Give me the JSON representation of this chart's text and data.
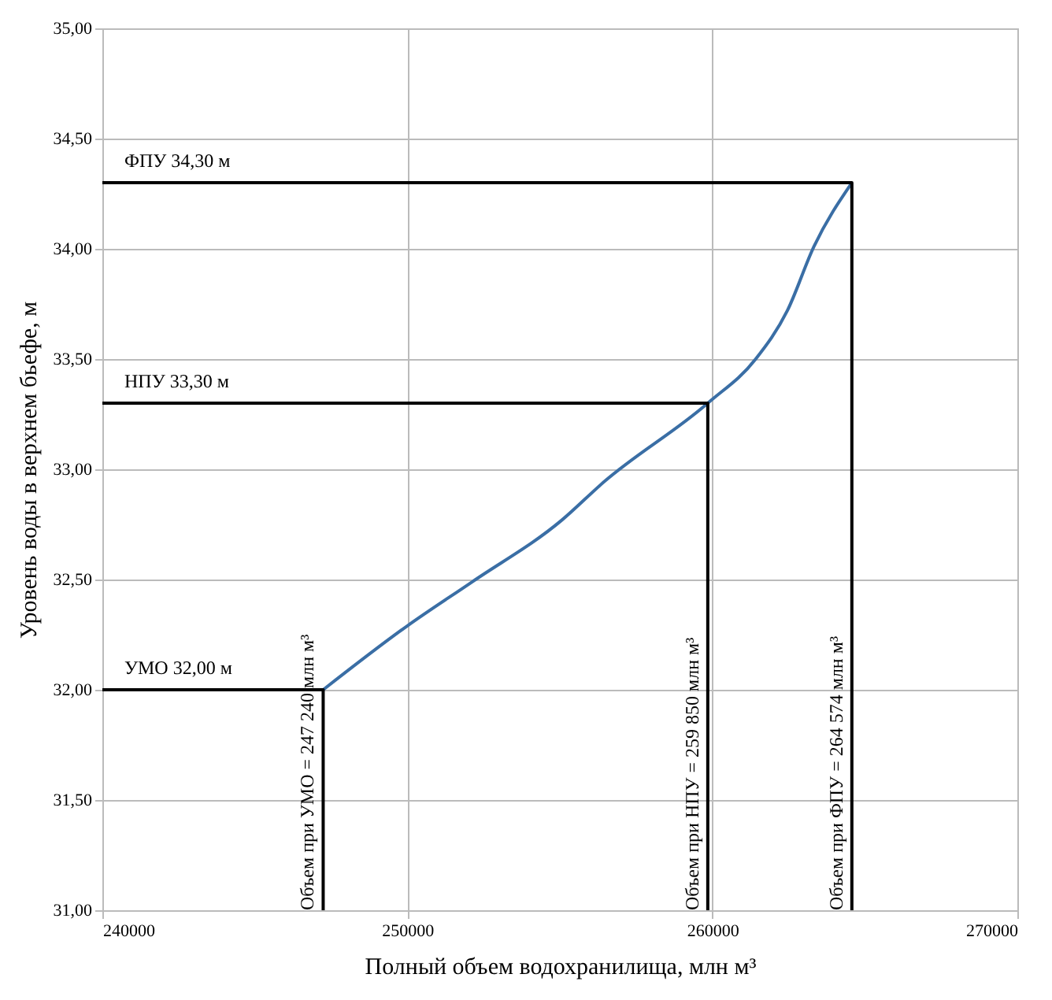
{
  "chart_data": {
    "type": "line",
    "xlabel": "Полный объем водохранилища, млн м³",
    "ylabel": "Уровень воды в верхнем бьефе,  м",
    "xlim": [
      240000,
      270000
    ],
    "xticks": [
      240000,
      250000,
      260000,
      270000
    ],
    "ylim": [
      31,
      35
    ],
    "yticks": [
      {
        "value": 31,
        "label": "31,00"
      },
      {
        "value": 31.5,
        "label": "31,50"
      },
      {
        "value": 32,
        "label": "32,00"
      },
      {
        "value": 32.5,
        "label": "32,50"
      },
      {
        "value": 33,
        "label": "33,00"
      },
      {
        "value": 33.5,
        "label": "33,50"
      },
      {
        "value": 34,
        "label": "34,00"
      },
      {
        "value": 34.5,
        "label": "34,50"
      },
      {
        "value": 35,
        "label": "35,00"
      }
    ],
    "grid": true,
    "marker": "none",
    "line_style": "solid",
    "series": [
      {
        "color": "#3a6ea5",
        "x": [
          247240,
          250000,
          252130,
          255070,
          256420,
          259850,
          261420,
          262460,
          263330,
          264574
        ],
        "values": [
          32.0,
          32.29,
          32.49,
          32.77,
          32.94,
          33.3,
          33.5,
          33.72,
          34.01,
          34.3
        ]
      },
      {
        "color": "#000000",
        "x": [
          240000,
          247240,
          247240
        ],
        "values": [
          32.0,
          32.0,
          31.0
        ]
      },
      {
        "color": "#000000",
        "x": [
          240000,
          259850,
          259850
        ],
        "values": [
          33.3,
          33.3,
          31.0
        ]
      },
      {
        "color": "#000000",
        "x": [
          240000,
          264574,
          264574
        ],
        "values": [
          34.3,
          34.3,
          31.0
        ]
      }
    ],
    "annotations": [
      "УМО 32,00 м",
      "НПУ 33,30 м",
      "ФПУ 34,30 м",
      "Объем при УМО = 247 240  млн м³",
      "Объем при НПУ = 259 850  млн м³",
      "Объем при ФПУ = 264 574 млн м³"
    ]
  }
}
